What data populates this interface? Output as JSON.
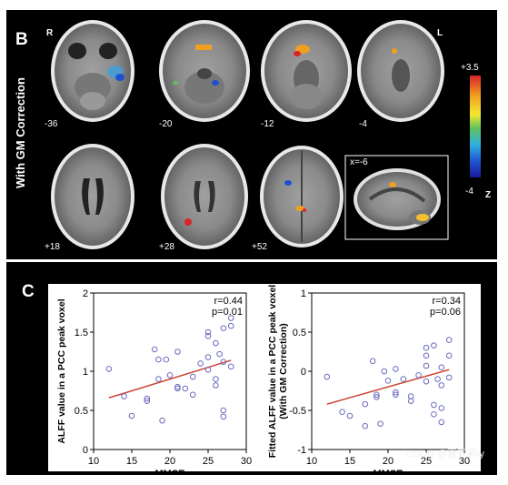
{
  "panel_b": {
    "letter": "B",
    "side_label": "With GM Correction",
    "orientation_left": "R",
    "orientation_right": "L",
    "colorbar": {
      "max": "+3.5",
      "min": "-4",
      "unit": "Z"
    },
    "axial_slices": [
      "-36",
      "-20",
      "-12",
      "-4",
      "+18",
      "+28",
      "+52"
    ],
    "sagittal_label": "x=-6"
  },
  "panel_c": {
    "letter": "C",
    "watermark": "CSDN @夏莉莉iy"
  },
  "chart_data": [
    {
      "type": "scatter",
      "ylabel": "ALFF value in a PCC peak voxel",
      "xlabel": "MMSE",
      "xlim": [
        10,
        30
      ],
      "ylim": [
        0,
        2
      ],
      "xticks": [
        "10",
        "15",
        "20",
        "25",
        "30"
      ],
      "yticks": [
        "0",
        "0.5",
        "1",
        "1.5",
        "2"
      ],
      "annotation": [
        "r=0.44",
        "p=0.01"
      ],
      "points": [
        [
          12,
          1.03
        ],
        [
          14,
          0.68
        ],
        [
          15,
          0.43
        ],
        [
          17,
          0.62
        ],
        [
          17,
          0.65
        ],
        [
          18,
          1.28
        ],
        [
          18.5,
          1.15
        ],
        [
          18.5,
          0.9
        ],
        [
          19,
          0.37
        ],
        [
          19.5,
          1.15
        ],
        [
          20,
          0.95
        ],
        [
          21,
          0.8
        ],
        [
          21,
          0.78
        ],
        [
          21,
          1.25
        ],
        [
          22,
          0.78
        ],
        [
          23,
          0.7
        ],
        [
          23,
          0.93
        ],
        [
          24,
          1.1
        ],
        [
          25,
          1.5
        ],
        [
          25,
          1.45
        ],
        [
          25,
          1.18
        ],
        [
          25,
          1.02
        ],
        [
          26,
          1.36
        ],
        [
          26,
          0.9
        ],
        [
          26,
          0.82
        ],
        [
          26.5,
          1.22
        ],
        [
          27,
          1.55
        ],
        [
          27,
          0.5
        ],
        [
          27,
          0.42
        ],
        [
          27,
          1.12
        ],
        [
          28,
          1.68
        ],
        [
          28,
          1.58
        ],
        [
          28,
          1.06
        ]
      ],
      "fit_line": [
        [
          12,
          0.66
        ],
        [
          28,
          1.14
        ]
      ],
      "marker_color": "#6b6bbf",
      "line_color": "#cc4433"
    },
    {
      "type": "scatter",
      "ylabel": "Fitted ALFF value in a PCC peak voxel (With GM Correction)",
      "ylabel_lines": [
        "Fitted ALFF value in a PCC peak voxel",
        "(With GM Correction)"
      ],
      "xlabel": "MMSE",
      "xlim": [
        10,
        30
      ],
      "ylim": [
        -1,
        1
      ],
      "xticks": [
        "10",
        "15",
        "20",
        "25",
        "30"
      ],
      "yticks": [
        "-1",
        "-0.5",
        "0",
        "0.5",
        "1"
      ],
      "annotation": [
        "r=0.34",
        "p=0.06"
      ],
      "points": [
        [
          12,
          -0.07
        ],
        [
          14,
          -0.52
        ],
        [
          15,
          -0.57
        ],
        [
          17,
          -0.42
        ],
        [
          17,
          -0.7
        ],
        [
          18,
          0.13
        ],
        [
          18.5,
          -0.3
        ],
        [
          18.5,
          -0.33
        ],
        [
          19,
          -0.67
        ],
        [
          19.5,
          0.0
        ],
        [
          20,
          -0.12
        ],
        [
          21,
          -0.27
        ],
        [
          21,
          0.03
        ],
        [
          21,
          -0.3
        ],
        [
          22,
          -0.1
        ],
        [
          23,
          -0.32
        ],
        [
          23,
          -0.38
        ],
        [
          24,
          -0.05
        ],
        [
          25,
          0.3
        ],
        [
          25,
          0.2
        ],
        [
          25,
          0.07
        ],
        [
          25,
          -0.13
        ],
        [
          26,
          0.33
        ],
        [
          26,
          -0.55
        ],
        [
          26,
          -0.43
        ],
        [
          26.5,
          -0.1
        ],
        [
          27,
          0.05
        ],
        [
          27,
          -0.65
        ],
        [
          27,
          -0.47
        ],
        [
          27,
          -0.18
        ],
        [
          28,
          0.4
        ],
        [
          28,
          0.2
        ],
        [
          28,
          -0.08
        ]
      ],
      "fit_line": [
        [
          12,
          -0.42
        ],
        [
          28,
          0.02
        ]
      ],
      "marker_color": "#6b6bbf",
      "line_color": "#cc4433"
    }
  ]
}
